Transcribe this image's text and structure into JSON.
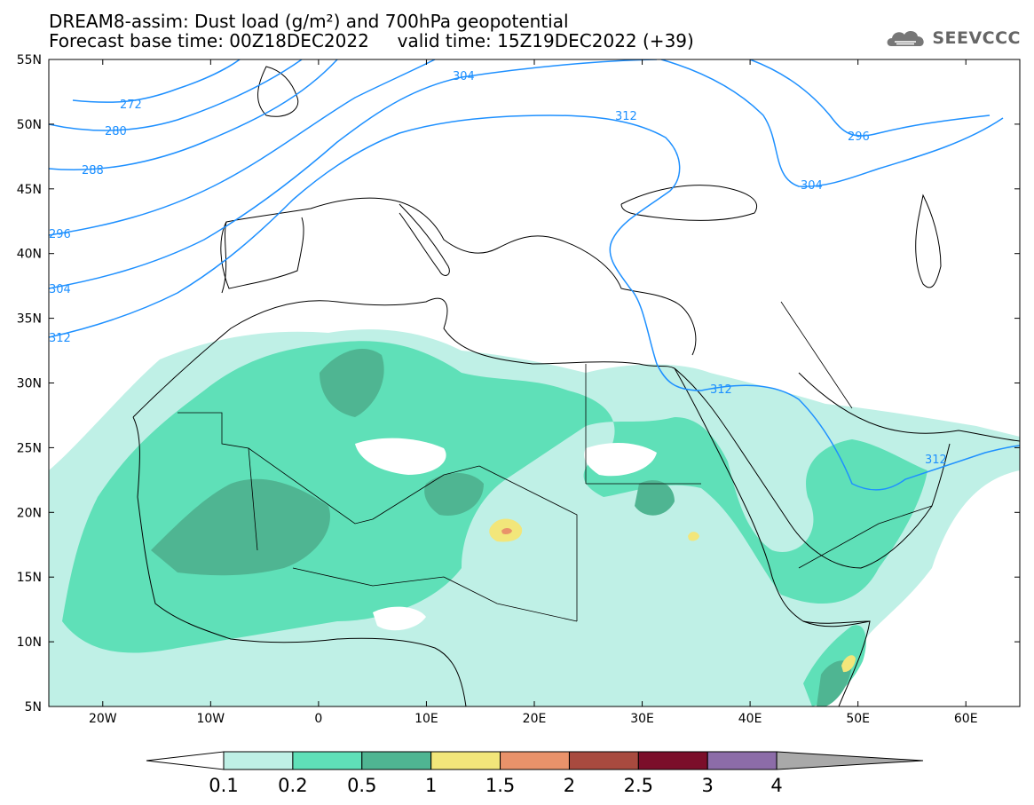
{
  "header": {
    "title": "DREAM8-assim: Dust load (g/m²) and 700hPa geopotential",
    "base_time_label": "Forecast base time: 00Z18DEC2022",
    "valid_time_label": "valid time: 15Z19DEC2022 (+39)"
  },
  "logo": {
    "text": "SEEVCCC",
    "icon": "cloud-logo-icon"
  },
  "map": {
    "lat_labels": [
      "55N",
      "50N",
      "45N",
      "40N",
      "35N",
      "30N",
      "25N",
      "20N",
      "15N",
      "10N",
      "5N"
    ],
    "lat_values": [
      55,
      50,
      45,
      40,
      35,
      30,
      25,
      20,
      15,
      10,
      5
    ],
    "lon_labels": [
      "20W",
      "10W",
      "0",
      "10E",
      "20E",
      "30E",
      "40E",
      "50E",
      "60E"
    ],
    "lon_values": [
      -20,
      -10,
      0,
      10,
      20,
      30,
      40,
      50,
      60
    ],
    "lon_range": [
      -25,
      65
    ],
    "lat_range": [
      5,
      55
    ],
    "contour_labels": [
      "272",
      "280",
      "288",
      "296",
      "304",
      "312",
      "304",
      "312",
      "296",
      "304",
      "312",
      "312"
    ]
  },
  "colorbar": {
    "ticks": [
      "0.1",
      "0.2",
      "0.5",
      "1",
      "1.5",
      "2",
      "2.5",
      "3",
      "4"
    ],
    "colors": [
      "#bff0e6",
      "#5fe0b8",
      "#4fb592",
      "#f2e67a",
      "#e9926a",
      "#a84a3f",
      "#7b0e2a",
      "#8c6ca8",
      "#a9a9a9"
    ]
  },
  "colors": {
    "contour": "#1e90ff",
    "dust_light": "#bff0e6",
    "dust_mid": "#5fe0b8",
    "dust_dark": "#4fb592",
    "dust_yellow": "#f2e67a",
    "dust_orange": "#e9926a"
  }
}
